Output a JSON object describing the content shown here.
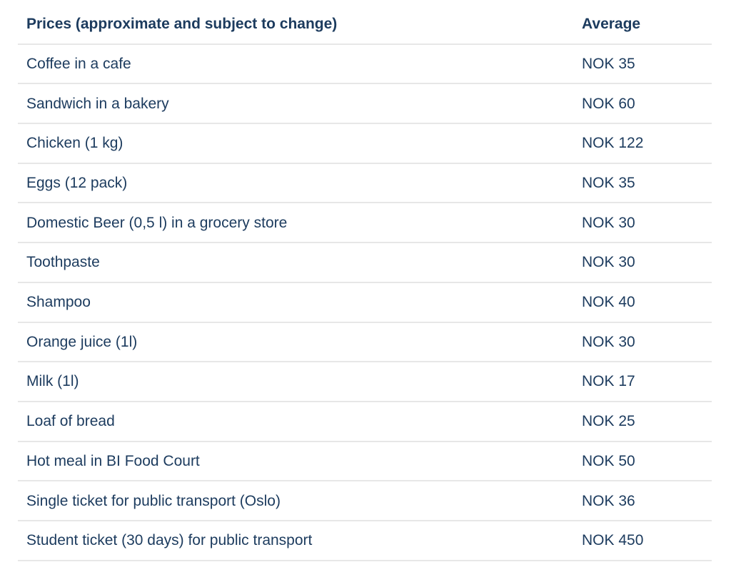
{
  "table": {
    "header": {
      "item": "Prices (approximate and subject to change)",
      "value": "Average"
    },
    "rows": [
      {
        "item": "Coffee in a cafe",
        "value": "NOK 35"
      },
      {
        "item": "Sandwich in a bakery",
        "value": "NOK 60"
      },
      {
        "item": "Chicken (1 kg)",
        "value": "NOK 122"
      },
      {
        "item": "Eggs (12 pack)",
        "value": "NOK 35"
      },
      {
        "item": "Domestic Beer (0,5 l) in a grocery store",
        "value": "NOK 30"
      },
      {
        "item": "Toothpaste",
        "value": "NOK 30"
      },
      {
        "item": "Shampoo",
        "value": "NOK 40"
      },
      {
        "item": "Orange juice (1l)",
        "value": "NOK 30"
      },
      {
        "item": "Milk (1l)",
        "value": "NOK 17"
      },
      {
        "item": "Loaf of bread",
        "value": "NOK 25"
      },
      {
        "item": "Hot meal in BI Food Court",
        "value": "NOK 50"
      },
      {
        "item": "Single ticket for public transport (Oslo)",
        "value": "NOK 36"
      },
      {
        "item": "Student ticket (30 days) for public transport",
        "value": "NOK 450"
      }
    ]
  },
  "chart_data": {
    "type": "table",
    "title": "Prices (approximate and subject to change)",
    "columns": [
      "Prices (approximate and subject to change)",
      "Average"
    ],
    "currency": "NOK",
    "categories": [
      "Coffee in a cafe",
      "Sandwich in a bakery",
      "Chicken (1 kg)",
      "Eggs (12 pack)",
      "Domestic Beer (0,5 l) in a grocery store",
      "Toothpaste",
      "Shampoo",
      "Orange juice (1l)",
      "Milk (1l)",
      "Loaf of bread",
      "Hot meal in BI Food Court",
      "Single ticket for public transport (Oslo)",
      "Student ticket (30 days) for public transport"
    ],
    "values": [
      35,
      60,
      122,
      35,
      30,
      30,
      40,
      30,
      17,
      25,
      50,
      36,
      450
    ]
  },
  "colors": {
    "text": "#1c3b5e",
    "divider": "#e7e7e7",
    "background": "#ffffff"
  }
}
